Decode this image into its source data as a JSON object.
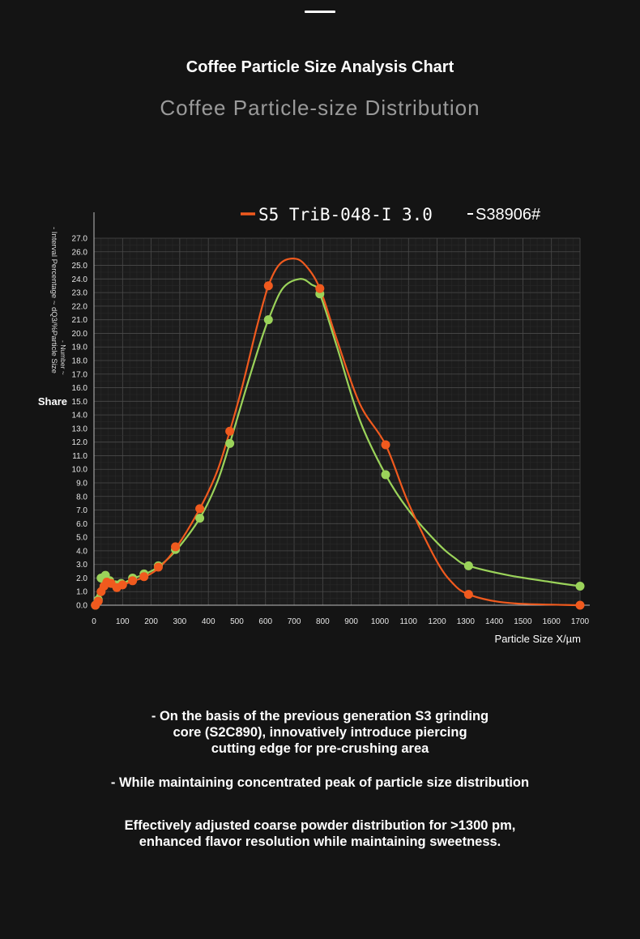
{
  "header": {
    "title": "Coffee Particle Size Analysis Chart",
    "subtitle": "Coffee Particle-size Distribution"
  },
  "chart_data": {
    "type": "line",
    "title": "",
    "xlabel": "Particle Size X/µm",
    "ylabel_lines": [
      "- Interval Percentage ~ dQ3/%Particle Size",
      "- Number ~"
    ],
    "ylabel_extra": "Share",
    "xlim": [
      0,
      1700
    ],
    "ylim": [
      0,
      27
    ],
    "x_ticks": [
      "0",
      "100",
      "200",
      "300",
      "400",
      "500",
      "600",
      "700",
      "800",
      "900",
      "1000",
      "1100",
      "1200",
      "1300",
      "1400",
      "1500",
      "1600",
      "1700"
    ],
    "y_ticks": [
      "0.0",
      "1.0",
      "2.0",
      "3.0",
      "4.0",
      "5.0",
      "6.0",
      "7.0",
      "8.0",
      "9.0",
      "10.0",
      "11.0",
      "12.0",
      "13.0",
      "14.0",
      "15.0",
      "16.0",
      "17.0",
      "18.0",
      "19.0",
      "20.0",
      "21.0",
      "22.0",
      "23.0",
      "24.0",
      "25.0",
      "26.0",
      "27.0"
    ],
    "grid": true,
    "legend_position": "top",
    "series": [
      {
        "name": "S5 TriB-048-I 3.0",
        "color": "#f05a1e",
        "points": [
          [
            5,
            0
          ],
          [
            15,
            0.3
          ],
          [
            25,
            1
          ],
          [
            35,
            1.4
          ],
          [
            45,
            1.7
          ],
          [
            60,
            1.6
          ],
          [
            80,
            1.3
          ],
          [
            100,
            1.5
          ],
          [
            135,
            1.8
          ],
          [
            175,
            2.1
          ],
          [
            225,
            2.8
          ],
          [
            285,
            4.3
          ],
          [
            370,
            7.1
          ],
          [
            475,
            12.8
          ],
          [
            610,
            23.5
          ],
          [
            790,
            23.3
          ],
          [
            1020,
            11.8
          ],
          [
            1310,
            0.8
          ],
          [
            1700,
            0
          ]
        ],
        "curve": [
          [
            0,
            0
          ],
          [
            20,
            0.5
          ],
          [
            40,
            1.6
          ],
          [
            60,
            1.5
          ],
          [
            80,
            1.3
          ],
          [
            100,
            1.5
          ],
          [
            140,
            1.8
          ],
          [
            180,
            2.1
          ],
          [
            230,
            2.8
          ],
          [
            290,
            4.3
          ],
          [
            370,
            7.1
          ],
          [
            430,
            9.8
          ],
          [
            475,
            12.8
          ],
          [
            520,
            16.2
          ],
          [
            570,
            20.5
          ],
          [
            610,
            23.5
          ],
          [
            650,
            25.1
          ],
          [
            700,
            25.5
          ],
          [
            740,
            25.0
          ],
          [
            790,
            23.3
          ],
          [
            850,
            19.5
          ],
          [
            930,
            14.8
          ],
          [
            1020,
            11.8
          ],
          [
            1100,
            7.5
          ],
          [
            1200,
            3.2
          ],
          [
            1260,
            1.5
          ],
          [
            1310,
            0.8
          ],
          [
            1400,
            0.3
          ],
          [
            1500,
            0.1
          ],
          [
            1700,
            0
          ]
        ]
      },
      {
        "name": "S38906#",
        "color": "#9bd35a",
        "points": [
          [
            5,
            0
          ],
          [
            15,
            0.4
          ],
          [
            25,
            2
          ],
          [
            40,
            2.2
          ],
          [
            55,
            1.8
          ],
          [
            75,
            1.5
          ],
          [
            95,
            1.6
          ],
          [
            135,
            2.0
          ],
          [
            175,
            2.3
          ],
          [
            225,
            2.9
          ],
          [
            285,
            4.1
          ],
          [
            370,
            6.4
          ],
          [
            475,
            11.9
          ],
          [
            610,
            21.0
          ],
          [
            790,
            22.9
          ],
          [
            1020,
            9.6
          ],
          [
            1310,
            2.9
          ],
          [
            1700,
            1.4
          ]
        ],
        "curve": [
          [
            0,
            0
          ],
          [
            20,
            1.2
          ],
          [
            40,
            2.2
          ],
          [
            60,
            1.8
          ],
          [
            80,
            1.5
          ],
          [
            100,
            1.6
          ],
          [
            140,
            2.0
          ],
          [
            180,
            2.3
          ],
          [
            230,
            2.9
          ],
          [
            290,
            4.1
          ],
          [
            370,
            6.4
          ],
          [
            430,
            9.0
          ],
          [
            475,
            11.9
          ],
          [
            530,
            15.8
          ],
          [
            580,
            19.2
          ],
          [
            610,
            21.0
          ],
          [
            660,
            23.3
          ],
          [
            720,
            24.0
          ],
          [
            760,
            23.6
          ],
          [
            790,
            22.9
          ],
          [
            850,
            19.0
          ],
          [
            930,
            13.6
          ],
          [
            1020,
            9.6
          ],
          [
            1100,
            7.0
          ],
          [
            1200,
            4.6
          ],
          [
            1260,
            3.5
          ],
          [
            1310,
            2.9
          ],
          [
            1450,
            2.2
          ],
          [
            1600,
            1.7
          ],
          [
            1700,
            1.4
          ]
        ]
      }
    ]
  },
  "description": {
    "paragraph1": [
      "- On the basis of the previous generation S3 grinding",
      "core (S2C890), innovatively introduce piercing",
      "cutting edge for pre-crushing area"
    ],
    "paragraph2": "- While maintaining concentrated peak of particle size distribution",
    "paragraph3": [
      "Effectively adjusted coarse powder distribution for >1300 pm,",
      "enhanced flavor resolution while maintaining sweetness."
    ]
  }
}
